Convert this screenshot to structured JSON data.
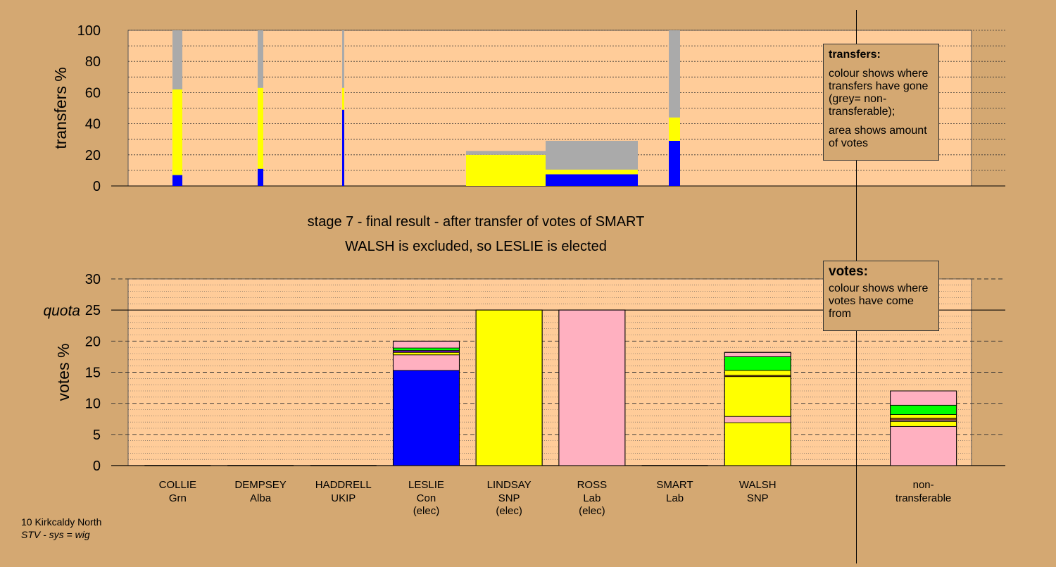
{
  "title": "stage 7 - final result - after transfer of votes of SMART",
  "subtitle": "WALSH is excluded, so LESLIE is elected",
  "footer": {
    "ward": "10 Kirkcaldy North",
    "system": "STV - sys = wig"
  },
  "colors": {
    "Con": "#0000ff",
    "SNP": "#ffff00",
    "Lab": "#ffb0c0",
    "Grn": "#00ff00",
    "Alba": "#8b4513",
    "UKIP": "#6a0dad",
    "non-transferable": "#aaaaaa",
    "plot_bg": "#ffcc99",
    "page_bg": "#d4a872"
  },
  "legend_transfers": {
    "title": "transfers:",
    "line1": "colour shows where transfers have gone (grey= non-transferable);",
    "line2": "area shows amount of votes"
  },
  "legend_votes": {
    "title": "votes:",
    "line1": "colour shows where votes have come from"
  },
  "chart_data": [
    {
      "type": "bar",
      "name": "transfers",
      "ylabel": "transfers %",
      "ylim": [
        0,
        100
      ],
      "yticks": [
        0,
        20,
        40,
        60,
        80,
        100
      ],
      "bars": [
        {
          "x_center": 252,
          "width": 14,
          "segments": [
            {
              "party": "Con",
              "value": 7
            },
            {
              "party": "SNP",
              "value": 55
            },
            {
              "party": "non-transferable",
              "value": 38
            }
          ]
        },
        {
          "x_center": 370,
          "width": 8,
          "segments": [
            {
              "party": "Con",
              "value": 11
            },
            {
              "party": "SNP",
              "value": 52
            },
            {
              "party": "non-transferable",
              "value": 37
            }
          ]
        },
        {
          "x_center": 487.5,
          "width": 3,
          "segments": [
            {
              "party": "Con",
              "value": 49
            },
            {
              "party": "SNP",
              "value": 14
            },
            {
              "party": "non-transferable",
              "value": 37
            }
          ]
        },
        {
          "x_center": 722.5,
          "width": 121,
          "segments": [
            {
              "party": "SNP",
              "value": 20
            },
            {
              "party": "non-transferable",
              "value": 2.5
            }
          ]
        },
        {
          "x_center": 840.5,
          "width": 131,
          "segments": [
            {
              "party": "Con",
              "value": 7.5
            },
            {
              "party": "SNP",
              "value": 3
            },
            {
              "party": "non-transferable",
              "value": 18.5
            }
          ]
        },
        {
          "x_center": 958,
          "width": 16,
          "segments": [
            {
              "party": "Con",
              "value": 29
            },
            {
              "party": "SNP",
              "value": 15
            },
            {
              "party": "non-transferable",
              "value": 56
            }
          ]
        }
      ]
    },
    {
      "type": "bar",
      "name": "votes",
      "ylabel": "votes %",
      "ylim": [
        0,
        30
      ],
      "yticks": [
        0,
        5,
        10,
        15,
        20,
        25,
        30
      ],
      "quota": 25,
      "quota_label": "quota",
      "categories": [
        {
          "name": "COLLIE",
          "party": "Grn",
          "note": "",
          "segments": []
        },
        {
          "name": "DEMPSEY",
          "party": "Alba",
          "note": "",
          "segments": []
        },
        {
          "name": "HADDRELL",
          "party": "UKIP",
          "note": "",
          "segments": []
        },
        {
          "name": "LESLIE",
          "party": "Con",
          "note": "(elec)",
          "segments": [
            {
              "party": "Con",
              "value": 15.3
            },
            {
              "party": "Lab",
              "value": 2.5
            },
            {
              "party": "SNP",
              "value": 0.4
            },
            {
              "party": "UKIP",
              "value": 0.3
            },
            {
              "party": "Grn",
              "value": 0.4
            },
            {
              "party": "Lab",
              "value": 1.1
            }
          ]
        },
        {
          "name": "LINDSAY",
          "party": "SNP",
          "note": "(elec)",
          "segments": [
            {
              "party": "SNP",
              "value": 25
            }
          ]
        },
        {
          "name": "ROSS",
          "party": "Lab",
          "note": "(elec)",
          "segments": [
            {
              "party": "Lab",
              "value": 25
            }
          ]
        },
        {
          "name": "SMART",
          "party": "Lab",
          "note": "",
          "segments": []
        },
        {
          "name": "WALSH",
          "party": "SNP",
          "note": "",
          "segments": [
            {
              "party": "SNP",
              "value": 6.9
            },
            {
              "party": "Lab",
              "value": 1.0
            },
            {
              "party": "SNP",
              "value": 6.4
            },
            {
              "party": "Alba",
              "value": 0.2
            },
            {
              "party": "SNP",
              "value": 0.8
            },
            {
              "party": "Grn",
              "value": 2.2
            },
            {
              "party": "Lab",
              "value": 0.7
            }
          ]
        },
        {
          "name": "",
          "party": "",
          "note": "",
          "segments": []
        },
        {
          "name": "non-",
          "party": "transferable",
          "note": "",
          "segments": [
            {
              "party": "Lab",
              "value": 6.3
            },
            {
              "party": "SNP",
              "value": 0.8
            },
            {
              "party": "Lab",
              "value": 0.2
            },
            {
              "party": "Alba",
              "value": 0.3
            },
            {
              "party": "SNP",
              "value": 0.6
            },
            {
              "party": "Grn",
              "value": 1.5
            },
            {
              "party": "Lab",
              "value": 2.3
            }
          ]
        }
      ]
    }
  ]
}
